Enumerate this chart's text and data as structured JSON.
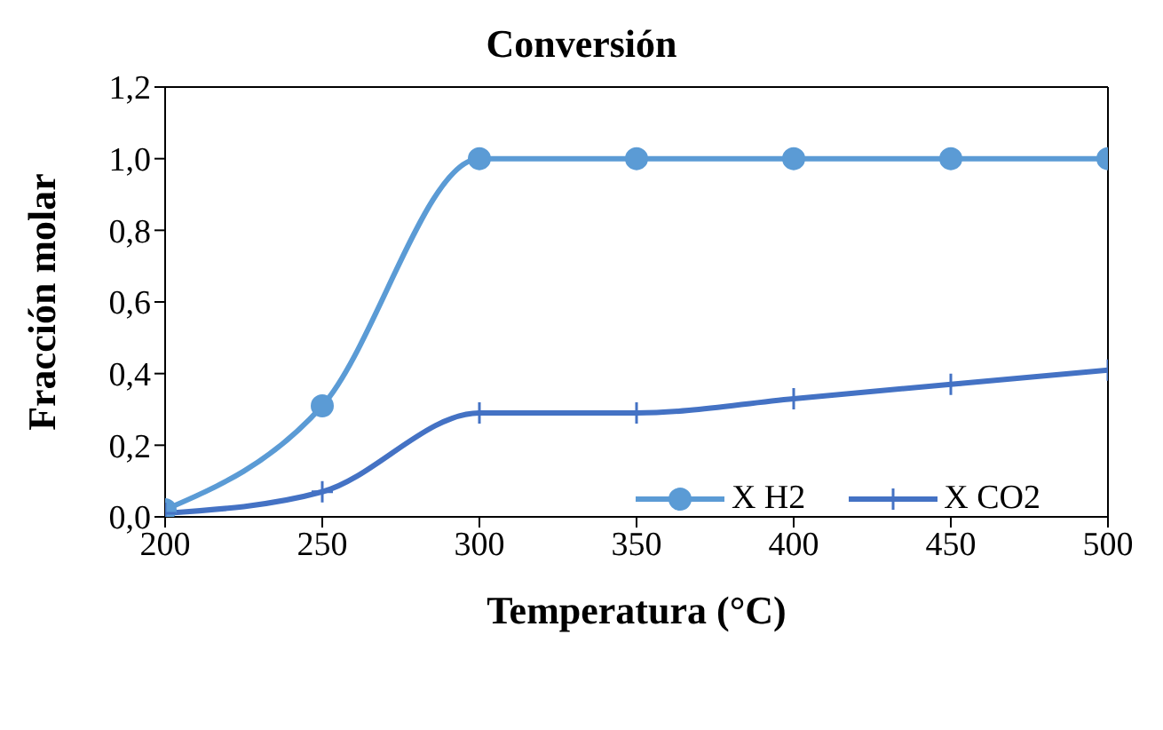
{
  "chart_data": {
    "type": "line",
    "title": "Conversión",
    "xlabel": "Temperatura (°C)",
    "ylabel": "Fracción molar",
    "x": [
      200,
      250,
      300,
      350,
      400,
      450,
      500
    ],
    "series": [
      {
        "name": "X H2",
        "color": "#5b9bd5",
        "marker": "circle",
        "values": [
          0.02,
          0.31,
          1.0,
          1.0,
          1.0,
          1.0,
          1.0
        ]
      },
      {
        "name": "X CO2",
        "color": "#4472c4",
        "marker": "cross",
        "values": [
          0.01,
          0.07,
          0.29,
          0.29,
          0.33,
          0.37,
          0.41
        ]
      }
    ],
    "xlim": [
      200,
      500
    ],
    "xticks": [
      200,
      250,
      300,
      350,
      400,
      450,
      500
    ],
    "ylim": [
      0,
      1.2
    ],
    "yticks": [
      {
        "value": 0,
        "label": "0,0"
      },
      {
        "value": 0.2,
        "label": "0,2"
      },
      {
        "value": 0.4,
        "label": "0,4"
      },
      {
        "value": 0.6,
        "label": "0,6"
      },
      {
        "value": 0.8,
        "label": "0,8"
      },
      {
        "value": 1.0,
        "label": "1,0"
      },
      {
        "value": 1.2,
        "label": "1,2"
      }
    ],
    "grid": false,
    "legend": "bottom right"
  }
}
